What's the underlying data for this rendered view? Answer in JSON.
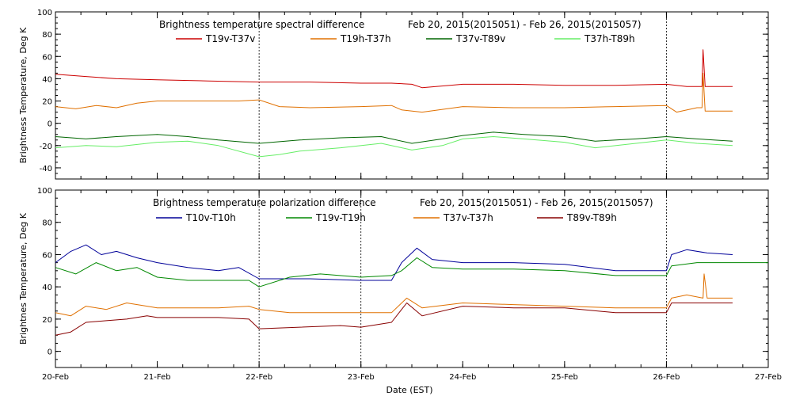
{
  "colors": {
    "T19v-T37v": "#cc0000",
    "T19h-T37h": "#e07000",
    "T37v-T89v": "#006600",
    "T37h-T89h": "#66ee66",
    "T10v-T10h": "#000099",
    "T19v-T19h": "#008800",
    "T37v-T37h": "#e07000",
    "T89v-T89h": "#880000"
  },
  "x_axis": {
    "label": "Date (EST)",
    "ticks": [
      "20-Feb",
      "21-Feb",
      "22-Feb",
      "23-Feb",
      "24-Feb",
      "25-Feb",
      "26-Feb",
      "27-Feb"
    ]
  },
  "chart_data": [
    {
      "type": "line",
      "title_left": "Brightness temperature spectral difference",
      "title_right": "Feb 20, 2015(2015051) - Feb 26, 2015(2015057)",
      "xlabel": "",
      "ylabel": "Brightness Temperature, Deg K",
      "xlim": [
        0,
        7
      ],
      "ylim": [
        -50,
        100
      ],
      "yticks": [
        -40,
        -20,
        0,
        20,
        40,
        60,
        80,
        100
      ],
      "day_markers": [
        2,
        6
      ],
      "series": [
        {
          "name": "T19v-T37v",
          "x": [
            0,
            0.3,
            0.6,
            1.0,
            1.5,
            2.0,
            2.5,
            3.0,
            3.3,
            3.5,
            3.6,
            4.0,
            4.5,
            5.0,
            5.5,
            6.0,
            6.2,
            6.35,
            6.36,
            6.38,
            6.4,
            6.65
          ],
          "values": [
            44,
            42,
            40,
            39,
            38,
            37,
            37,
            36,
            36,
            35,
            32,
            35,
            35,
            34,
            34,
            35,
            33,
            33,
            66,
            33,
            33,
            33
          ]
        },
        {
          "name": "T19h-T37h",
          "x": [
            0,
            0.2,
            0.4,
            0.6,
            0.8,
            1.0,
            1.3,
            1.6,
            1.8,
            2.0,
            2.2,
            2.5,
            3.0,
            3.3,
            3.4,
            3.6,
            4.0,
            4.5,
            5.0,
            5.5,
            6.0,
            6.1,
            6.3,
            6.35,
            6.36,
            6.38,
            6.5,
            6.65
          ],
          "values": [
            15,
            13,
            16,
            14,
            18,
            20,
            20,
            20,
            20,
            21,
            15,
            14,
            15,
            16,
            12,
            10,
            15,
            14,
            14,
            15,
            16,
            10,
            14,
            14,
            45,
            11,
            11,
            11
          ]
        },
        {
          "name": "T37v-T89v",
          "x": [
            0,
            0.3,
            0.6,
            1.0,
            1.3,
            1.6,
            2.0,
            2.4,
            2.8,
            3.2,
            3.5,
            3.8,
            4.0,
            4.3,
            4.6,
            5.0,
            5.3,
            5.7,
            6.0,
            6.3,
            6.65
          ],
          "values": [
            -12,
            -14,
            -12,
            -10,
            -12,
            -15,
            -18,
            -15,
            -13,
            -12,
            -18,
            -14,
            -11,
            -8,
            -10,
            -12,
            -16,
            -14,
            -12,
            -14,
            -16
          ]
        },
        {
          "name": "T37h-T89h",
          "x": [
            0,
            0.3,
            0.6,
            1.0,
            1.3,
            1.6,
            2.0,
            2.2,
            2.4,
            2.8,
            3.2,
            3.5,
            3.8,
            4.0,
            4.3,
            4.6,
            5.0,
            5.3,
            5.7,
            6.0,
            6.3,
            6.65
          ],
          "values": [
            -22,
            -20,
            -21,
            -17,
            -16,
            -20,
            -30,
            -28,
            -25,
            -22,
            -18,
            -24,
            -20,
            -14,
            -12,
            -14,
            -17,
            -22,
            -18,
            -15,
            -18,
            -20
          ]
        }
      ]
    },
    {
      "type": "line",
      "title_left": "Brightness temperature polarization difference",
      "title_right": "Feb 20, 2015(2015051) - Feb 26, 2015(2015057)",
      "xlabel": "Date (EST)",
      "ylabel": "Brightnes Temperature, Deg K",
      "xlim": [
        0,
        7
      ],
      "ylim": [
        -10,
        100
      ],
      "yticks": [
        0,
        20,
        40,
        60,
        80,
        100
      ],
      "day_markers": [
        2,
        3,
        6
      ],
      "series": [
        {
          "name": "T10v-T10h",
          "x": [
            0,
            0.15,
            0.3,
            0.45,
            0.6,
            0.8,
            1.0,
            1.3,
            1.6,
            1.8,
            2.0,
            2.5,
            3.0,
            3.3,
            3.4,
            3.55,
            3.7,
            4.0,
            4.5,
            5.0,
            5.5,
            6.0,
            6.05,
            6.2,
            6.4,
            6.65
          ],
          "values": [
            55,
            62,
            66,
            60,
            62,
            58,
            55,
            52,
            50,
            52,
            45,
            45,
            44,
            44,
            55,
            64,
            57,
            55,
            55,
            54,
            50,
            50,
            60,
            63,
            61,
            60
          ]
        },
        {
          "name": "T19v-T19h",
          "x": [
            0,
            0.2,
            0.4,
            0.6,
            0.8,
            1.0,
            1.3,
            1.6,
            1.9,
            2.0,
            2.3,
            2.6,
            3.0,
            3.3,
            3.4,
            3.55,
            3.7,
            4.0,
            4.5,
            5.0,
            5.5,
            6.0,
            6.05,
            6.3,
            6.65,
            7.0
          ],
          "values": [
            52,
            48,
            55,
            50,
            52,
            46,
            44,
            44,
            44,
            40,
            46,
            48,
            46,
            47,
            50,
            58,
            52,
            51,
            51,
            50,
            47,
            47,
            53,
            55,
            55,
            55
          ]
        },
        {
          "name": "T37v-T37h",
          "x": [
            0,
            0.15,
            0.3,
            0.5,
            0.7,
            0.9,
            1.0,
            1.3,
            1.6,
            1.9,
            2.0,
            2.3,
            2.6,
            3.0,
            3.3,
            3.45,
            3.6,
            4.0,
            4.5,
            5.0,
            5.5,
            6.0,
            6.05,
            6.2,
            6.36,
            6.37,
            6.4,
            6.65
          ],
          "values": [
            24,
            22,
            28,
            26,
            30,
            28,
            27,
            27,
            27,
            28,
            26,
            24,
            24,
            24,
            24,
            33,
            27,
            30,
            29,
            28,
            27,
            27,
            33,
            35,
            33,
            48,
            33,
            33
          ]
        },
        {
          "name": "T89v-T89h",
          "x": [
            0,
            0.15,
            0.3,
            0.5,
            0.7,
            0.9,
            1.0,
            1.3,
            1.6,
            1.9,
            2.0,
            2.4,
            2.8,
            3.0,
            3.3,
            3.45,
            3.6,
            4.0,
            4.5,
            5.0,
            5.5,
            6.0,
            6.05,
            6.2,
            6.65
          ],
          "values": [
            10,
            12,
            18,
            19,
            20,
            22,
            21,
            21,
            21,
            20,
            14,
            15,
            16,
            15,
            18,
            30,
            22,
            28,
            27,
            27,
            24,
            24,
            30,
            30,
            30
          ]
        }
      ]
    }
  ]
}
